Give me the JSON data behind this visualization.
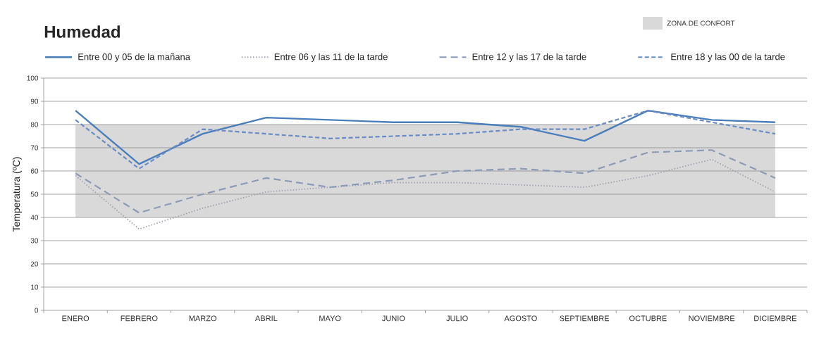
{
  "chart_data": {
    "type": "line",
    "title": "Humedad",
    "ylabel": "Temperatura (ºC)",
    "categories": [
      "ENERO",
      "FEBRERO",
      "MARZO",
      "ABRIL",
      "MAYO",
      "JUNIO",
      "JULIO",
      "AGOSTO",
      "SEPTIEMBRE",
      "OCTUBRE",
      "NOVIEMBRE",
      "DICIEMBRE"
    ],
    "series": [
      {
        "name": "Entre 00 y 05 de la mañana",
        "color": "#4a7ebb",
        "line_style": "solid",
        "values": [
          86,
          63,
          76,
          83,
          82,
          81,
          81,
          79,
          73,
          86,
          82,
          81
        ]
      },
      {
        "name": "Entre 06 y las 11 de la tarde",
        "color": "#a6a6b4",
        "line_style": "dotted",
        "values": [
          58,
          35,
          44,
          51,
          53,
          55,
          55,
          54,
          53,
          58,
          65,
          51
        ]
      },
      {
        "name": "Entre 12 y las 17 de la tarde",
        "color": "#8d9bb5",
        "line_style": "dashed",
        "values": [
          59,
          42,
          50,
          57,
          53,
          56,
          60,
          61,
          59,
          68,
          69,
          57
        ]
      },
      {
        "name": "Entre 18 y las 00 de la tarde",
        "color": "#6a8cc6",
        "line_style": "dashed",
        "values": [
          82,
          61,
          78,
          76,
          74,
          75,
          76,
          78,
          78,
          86,
          81,
          76
        ]
      }
    ],
    "ylim": [
      0,
      100
    ],
    "yticks": [
      0,
      10,
      20,
      30,
      40,
      50,
      60,
      70,
      80,
      90,
      100
    ],
    "grid": "y",
    "legend": "top",
    "marker": "none",
    "bands": [
      {
        "axis": "y",
        "from": 40,
        "to": 80,
        "label": "ZONA DE CONFORT",
        "color": "#d9d9d9"
      }
    ]
  }
}
